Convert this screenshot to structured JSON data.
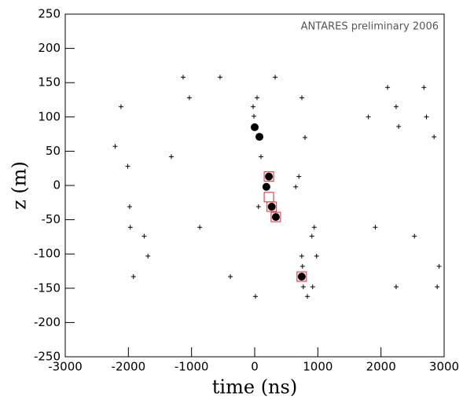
{
  "chart_data": {
    "type": "scatter",
    "annotation": "ANTARES preliminary 2006",
    "x_label": "time (ns)",
    "y_label": "z (m)",
    "xlim": [
      -3000,
      3000
    ],
    "ylim": [
      -250,
      250
    ],
    "xticks": [
      -3000,
      -2000,
      -1000,
      0,
      1000,
      2000,
      3000
    ],
    "yticks": [
      -250,
      -200,
      -150,
      -100,
      -50,
      0,
      50,
      100,
      150,
      200,
      250
    ],
    "grid": false,
    "series": [
      {
        "marker": "plus",
        "color": "#000000",
        "x": [
          -1133,
          -548,
          324,
          -2117,
          -1034,
          37,
          747,
          -25,
          -12,
          2105,
          2680,
          2720,
          2840,
          2240,
          2280,
          1800,
          -2210,
          -2010,
          -1320,
          100,
          797,
          700,
          650,
          60,
          -1980,
          -1970,
          -1750,
          -1690,
          -1920,
          -870,
          -385,
          12,
          943,
          906,
          745,
          980,
          757,
          770,
          918,
          834,
          1910,
          2530,
          2240,
          2890,
          2920
        ],
        "y": [
          158,
          158,
          158,
          115,
          128,
          128,
          128,
          115,
          101,
          143,
          143,
          100,
          71,
          115,
          86,
          100,
          57,
          28,
          42,
          42,
          70,
          13,
          -2,
          -31,
          -31,
          -61,
          -74,
          -103,
          -133,
          -61,
          -133,
          -162,
          -61,
          -74,
          -103,
          -103,
          -118,
          -148,
          -148,
          -162,
          -61,
          -74,
          -148,
          -148,
          -118
        ]
      },
      {
        "marker": "circle",
        "color": "#000000",
        "x": [
          0,
          75,
          225,
          185,
          270,
          335,
          745
        ],
        "y": [
          85,
          71,
          13,
          -2,
          -31,
          -46,
          -133
        ]
      },
      {
        "marker": "square",
        "color": "#e8202a",
        "x": [
          225,
          225,
          270,
          335,
          745
        ],
        "y": [
          13,
          -17,
          -31,
          -46,
          -133
        ]
      }
    ]
  }
}
